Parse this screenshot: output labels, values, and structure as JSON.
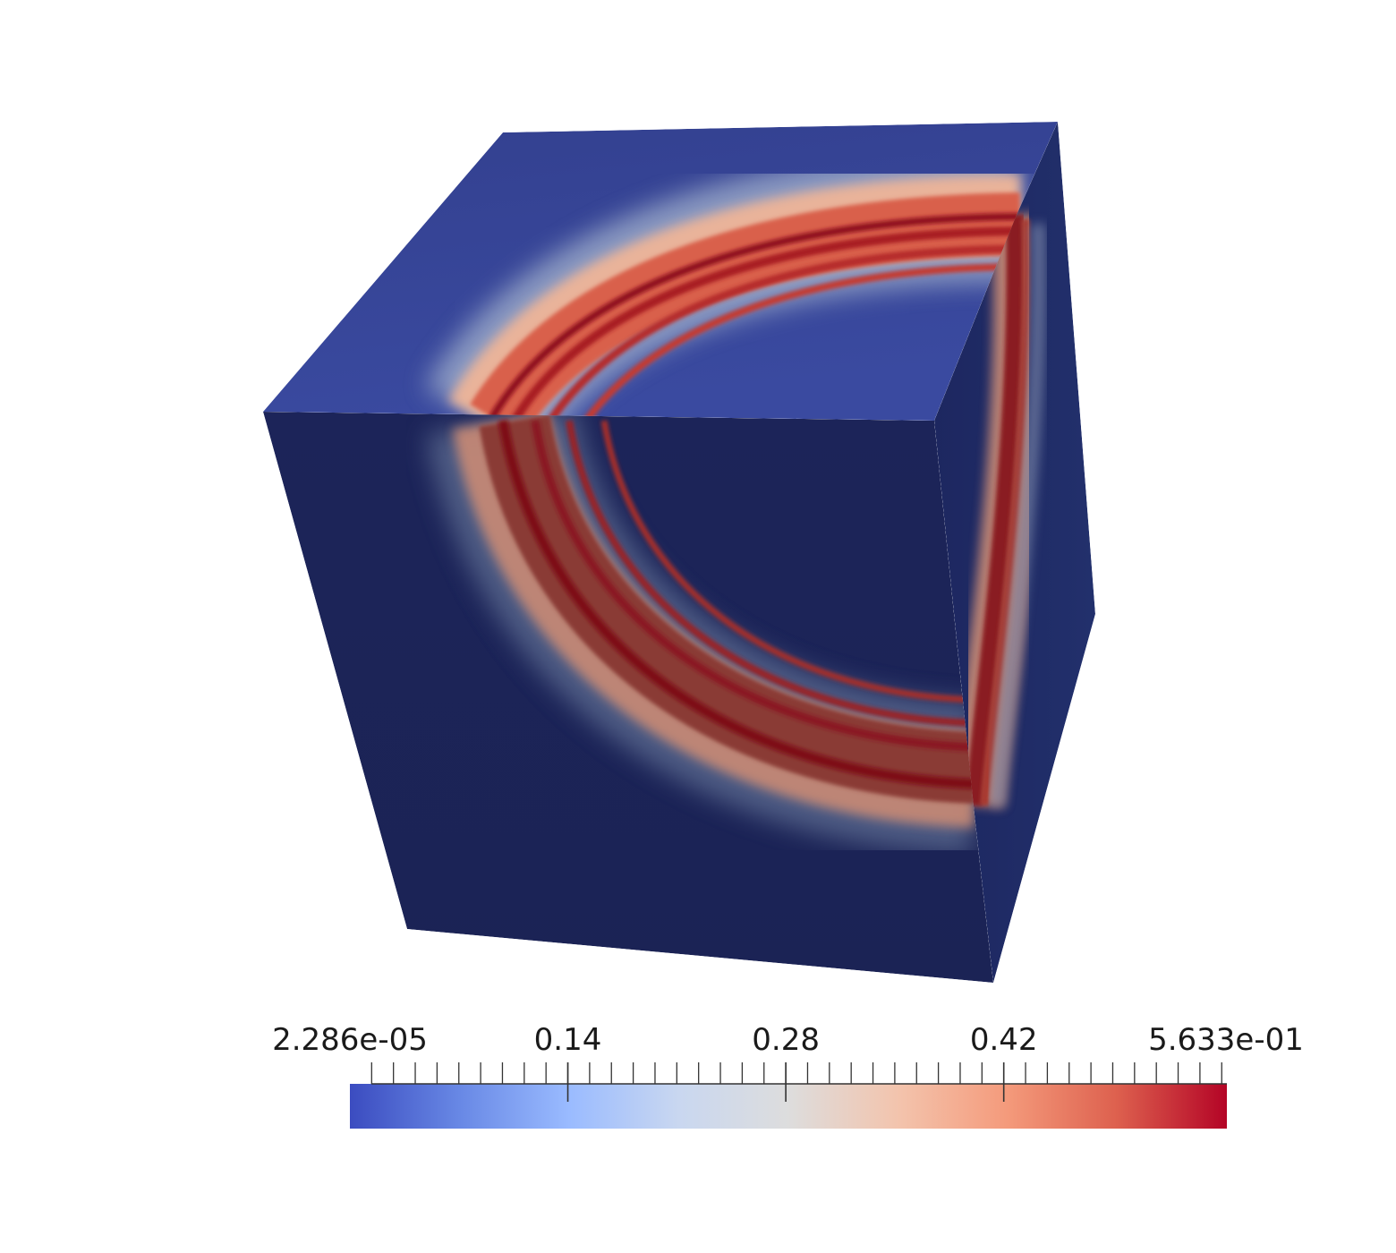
{
  "scene": {
    "object": "cube",
    "colormap": "Cool to Warm",
    "background": "#ffffff",
    "colors": {
      "top_face": "#37459a",
      "front_face": "#1b2457",
      "side_face": "#1e2a64",
      "ring_dark": "#8e0f1c",
      "ring_light": "#e27058"
    }
  },
  "colorbar": {
    "min_label": "2.286e-05",
    "max_label": "5.633e-01",
    "tick_labels": [
      "0.14",
      "0.28",
      "0.42"
    ],
    "range": [
      2.286e-05,
      0.5633
    ],
    "labeled_tick_values": [
      0.14,
      0.28,
      0.42
    ],
    "minor_tick_step": 0.014,
    "color_stops": [
      "#3b4cc0",
      "#6888e5",
      "#9abbff",
      "#c9d7f0",
      "#dddddd",
      "#f3c4ad",
      "#f49a7b",
      "#dd604e",
      "#b40426"
    ]
  }
}
